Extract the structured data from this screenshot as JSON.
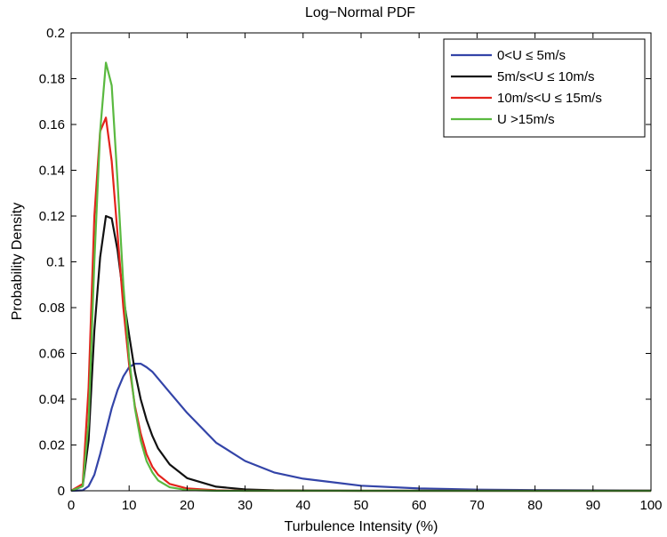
{
  "chart_data": {
    "type": "line",
    "title": "Log−Normal PDF",
    "xlabel": "Turbulence Intensity (%)",
    "ylabel": "Probability Density",
    "xlim": [
      0,
      100
    ],
    "ylim": [
      0,
      0.2
    ],
    "xticks": [
      0,
      10,
      20,
      30,
      40,
      50,
      60,
      70,
      80,
      90,
      100
    ],
    "yticks": [
      0,
      0.02,
      0.04,
      0.06,
      0.08,
      0.1,
      0.12,
      0.14,
      0.16,
      0.18,
      0.2
    ],
    "ytick_labels": [
      "0",
      "0.02",
      "0.04",
      "0.06",
      "0.08",
      "0.1",
      "0.12",
      "0.14",
      "0.16",
      "0.18",
      "0.2"
    ],
    "grid": false,
    "legend_position": "top-right",
    "series": [
      {
        "name": "0<U ≤ 5m/s",
        "color": "#3344a8",
        "x": [
          0,
          2,
          3,
          4,
          5,
          6,
          7,
          8,
          9,
          10,
          11,
          12,
          13,
          14,
          15,
          17,
          20,
          25,
          30,
          35,
          40,
          50,
          60,
          70,
          80,
          90,
          100
        ],
        "y": [
          0,
          0.0002,
          0.002,
          0.007,
          0.016,
          0.026,
          0.036,
          0.044,
          0.05,
          0.054,
          0.0555,
          0.0555,
          0.054,
          0.052,
          0.049,
          0.043,
          0.034,
          0.021,
          0.013,
          0.008,
          0.0053,
          0.0022,
          0.001,
          0.0005,
          0.0003,
          0.0002,
          0.0001
        ]
      },
      {
        "name": "5m/s<U ≤ 10m/s",
        "color": "#111111",
        "x": [
          0,
          2,
          3,
          4,
          5,
          6,
          7,
          8,
          9,
          10,
          11,
          12,
          13,
          14,
          15,
          17,
          20,
          25,
          30,
          35,
          40,
          50,
          60,
          80,
          100
        ],
        "y": [
          0,
          0.002,
          0.022,
          0.07,
          0.102,
          0.12,
          0.119,
          0.105,
          0.085,
          0.068,
          0.052,
          0.04,
          0.031,
          0.024,
          0.0185,
          0.0115,
          0.0055,
          0.0018,
          0.0006,
          0.0002,
          0.0001,
          0,
          0,
          0,
          0
        ]
      },
      {
        "name": "10m/s<U ≤ 15m/s",
        "color": "#e3231c",
        "x": [
          0,
          2,
          3,
          4,
          5,
          6,
          7,
          8,
          9,
          10,
          11,
          12,
          13,
          14,
          15,
          17,
          20,
          25,
          30,
          40,
          100
        ],
        "y": [
          0,
          0.003,
          0.045,
          0.12,
          0.157,
          0.163,
          0.144,
          0.112,
          0.08,
          0.055,
          0.037,
          0.025,
          0.016,
          0.0105,
          0.007,
          0.003,
          0.001,
          0.0002,
          0,
          0,
          0
        ]
      },
      {
        "name": "U >15m/s",
        "color": "#5ab940",
        "x": [
          0,
          2,
          3,
          4,
          5,
          6,
          7,
          8,
          9,
          10,
          11,
          12,
          13,
          14,
          15,
          17,
          20,
          25,
          30,
          100
        ],
        "y": [
          0,
          0.002,
          0.03,
          0.1,
          0.157,
          0.187,
          0.177,
          0.135,
          0.09,
          0.058,
          0.036,
          0.022,
          0.013,
          0.008,
          0.0045,
          0.0015,
          0.0003,
          0,
          0,
          0
        ]
      }
    ]
  }
}
